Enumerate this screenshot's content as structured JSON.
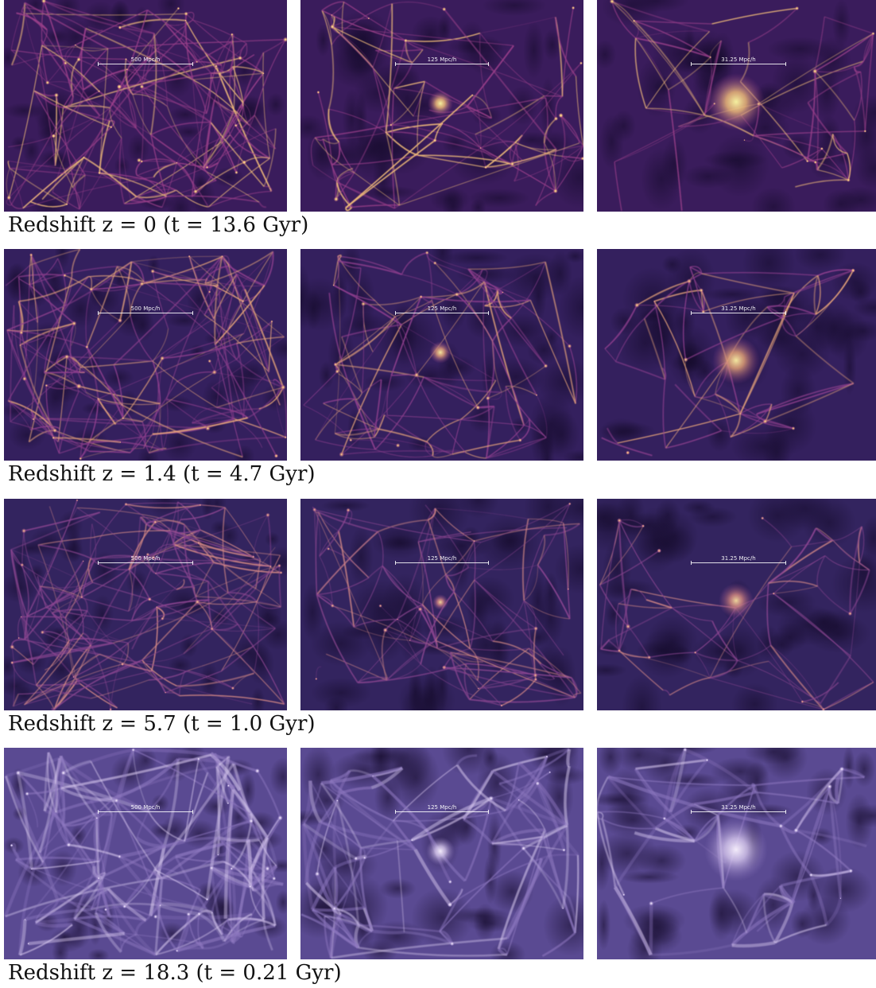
{
  "rows": [
    {
      "caption": "Redshift z = 0 (t = 13.6 Gyr)",
      "scales": [
        "500 Mpc/h",
        "125 Mpc/h",
        "31.25 Mpc/h"
      ],
      "palette": {
        "bg": "#3a1c5c",
        "mid": "#9a3f8a",
        "hi": "#f6c07a",
        "core": "#f4f0a0"
      }
    },
    {
      "caption": "Redshift z = 1.4 (t = 4.7 Gyr)",
      "scales": [
        "500 Mpc/h",
        "125 Mpc/h",
        "31.25 Mpc/h"
      ],
      "palette": {
        "bg": "#34205e",
        "mid": "#8f3f8e",
        "hi": "#e9a57a",
        "core": "#f2e7a0"
      }
    },
    {
      "caption": "Redshift z = 5.7 (t = 1.0 Gyr)",
      "scales": [
        "500 Mpc/h",
        "125 Mpc/h",
        "31.25 Mpc/h"
      ],
      "palette": {
        "bg": "#33245f",
        "mid": "#8a4590",
        "hi": "#d98b86",
        "core": "#ecd49a"
      }
    },
    {
      "caption": "Redshift z = 18.3 (t = 0.21 Gyr)",
      "scales": [
        "500 Mpc/h",
        "125 Mpc/h",
        "31.25 Mpc/h"
      ],
      "palette": {
        "bg": "#5a4a92",
        "mid": "#8e78c0",
        "hi": "#d7c8ee",
        "core": "#f3ebfa"
      }
    }
  ]
}
